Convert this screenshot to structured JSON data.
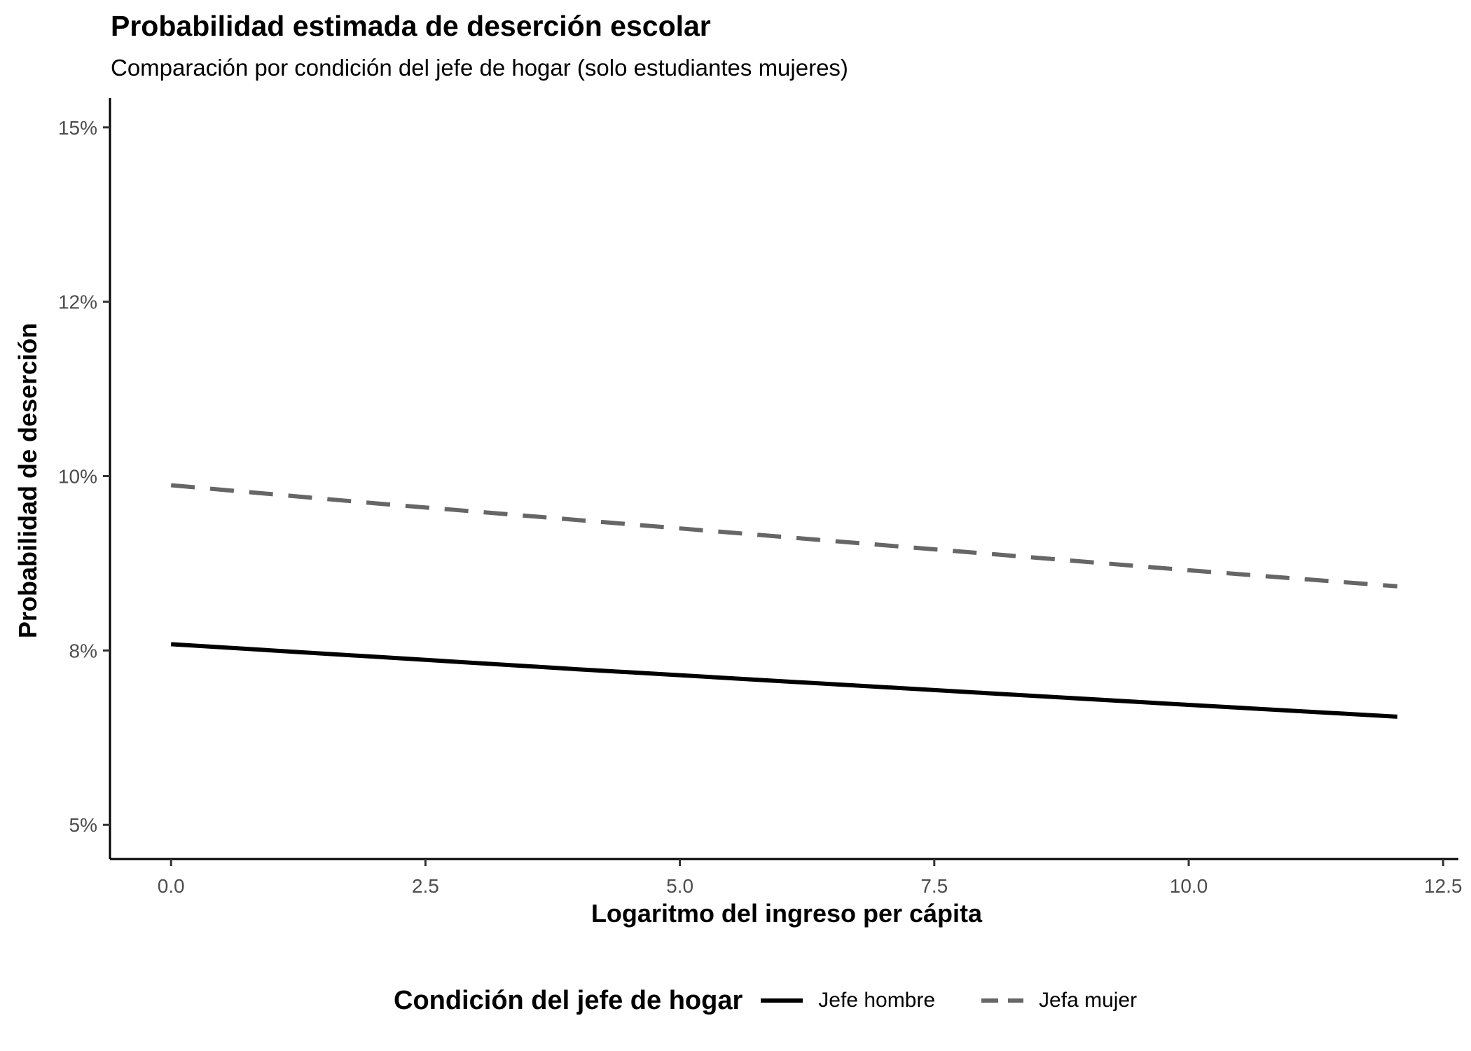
{
  "chart_data": {
    "type": "line",
    "title": "Probabilidad estimada de deserción escolar",
    "subtitle": "Comparación por condición del jefe de hogar (solo estudiantes mujeres)",
    "xlabel": "Logaritmo del ingreso per cápita",
    "ylabel": "Probabilidad de deserción",
    "xlim": [
      -0.6,
      12.65
    ],
    "ylim": [
      0.0451,
      0.1542
    ],
    "xticks": [
      0,
      2.5,
      5,
      7.5,
      10,
      12.5
    ],
    "xtick_labels": [
      "0.0",
      "2.5",
      "5.0",
      "7.5",
      "10.0",
      "12.5"
    ],
    "yticks": [
      0.05,
      0.075,
      0.1,
      0.125,
      0.15
    ],
    "ytick_labels": [
      "5%",
      "8%",
      "10%",
      "12%",
      "15%"
    ],
    "grid": false,
    "legend_position": "bottom",
    "legend_title": "Condición del jefe de hogar",
    "series": [
      {
        "name": "Jefe hombre",
        "color": "#000000",
        "linestyle": "solid",
        "x": [
          0,
          2,
          4,
          6,
          8,
          10,
          12.05
        ],
        "y": [
          0.0759,
          0.0741,
          0.0723,
          0.0706,
          0.0689,
          0.0672,
          0.0655
        ]
      },
      {
        "name": "Jefa mujer",
        "color": "#666666",
        "linestyle": "dashed",
        "x": [
          0,
          2,
          4,
          6,
          8,
          10,
          12.05
        ],
        "y": [
          0.0987,
          0.0961,
          0.0937,
          0.0913,
          0.0889,
          0.0865,
          0.0842
        ]
      }
    ]
  }
}
